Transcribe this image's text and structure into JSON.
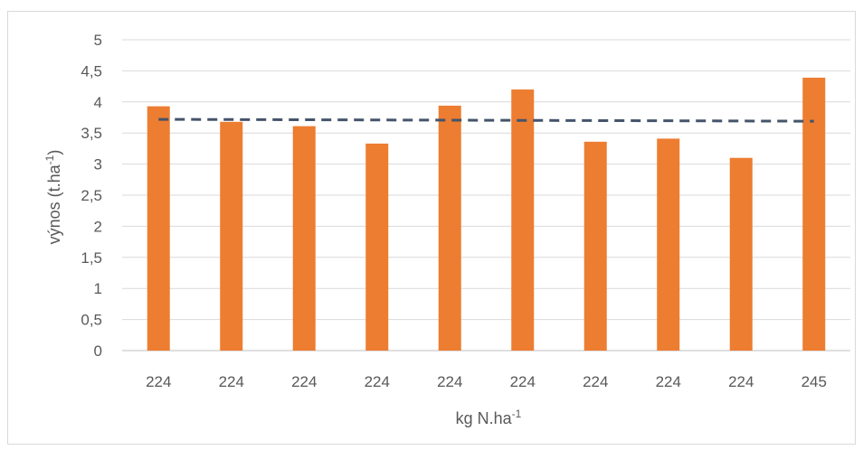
{
  "chart_data": {
    "type": "bar",
    "categories": [
      "224",
      "224",
      "224",
      "224",
      "224",
      "224",
      "224",
      "224",
      "224",
      "245"
    ],
    "series": [
      {
        "values": [
          3.93,
          3.68,
          3.61,
          3.33,
          3.94,
          4.2,
          3.36,
          3.41,
          3.1,
          4.39
        ],
        "color": "#ED7D31"
      }
    ],
    "trendline": {
      "style": "dashed",
      "color": "#44546A",
      "start": 3.72,
      "end": 3.69
    },
    "xlabel": "kg N.ha",
    "xlabel_sup": "-1",
    "ylabel": "výnos (t.ha",
    "ylabel_sup": "-1",
    "ylabel_end": ")",
    "ylim": [
      0,
      5
    ],
    "yticks": [
      "0",
      "0,5",
      "1",
      "1,5",
      "2",
      "2,5",
      "3",
      "3,5",
      "4",
      "4,5",
      "5"
    ],
    "grid": true,
    "legend": "none"
  }
}
